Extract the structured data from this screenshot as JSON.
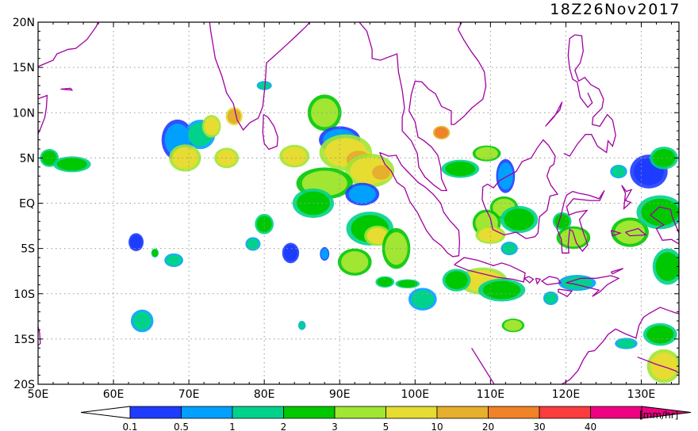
{
  "timestamp": "18Z26Nov2017",
  "map": {
    "lon_range": [
      50,
      135
    ],
    "lat_range": [
      -20,
      20
    ],
    "lat_labels": [
      "20N",
      "15N",
      "10N",
      "5N",
      "EQ",
      "5S",
      "10S",
      "15S",
      "20S"
    ],
    "lon_labels": [
      "50E",
      "60E",
      "70E",
      "80E",
      "90E",
      "100E",
      "110E",
      "120E",
      "130E"
    ],
    "grid_lines": true,
    "coastline_color": "#a000a0",
    "grid_color": "#999999"
  },
  "colorbar": {
    "unit": "[mm/hr]",
    "levels": [
      "0.1",
      "0.5",
      "1",
      "2",
      "3",
      "5",
      "10",
      "20",
      "30",
      "40"
    ],
    "colors": [
      "#1e3cff",
      "#00a0ff",
      "#00d28c",
      "#00c800",
      "#a0e632",
      "#e6dc32",
      "#e6af2d",
      "#f08228",
      "#fa3c3c",
      "#f00082"
    ]
  },
  "rain_cells": [
    {
      "lon": 68.5,
      "lat": 7.0,
      "rx": 1.7,
      "ry": 1.8,
      "c": 1
    },
    {
      "lon": 71.5,
      "lat": 7.6,
      "rx": 1.6,
      "ry": 1.3,
      "c": 2
    },
    {
      "lon": 69.5,
      "lat": 5.0,
      "rx": 1.7,
      "ry": 1.2,
      "c": 5
    },
    {
      "lon": 73.0,
      "lat": 8.5,
      "rx": 1.0,
      "ry": 1.0,
      "c": 5
    },
    {
      "lon": 75.0,
      "lat": 5.0,
      "rx": 1.3,
      "ry": 0.9,
      "c": 5
    },
    {
      "lon": 76.0,
      "lat": 9.6,
      "rx": 0.9,
      "ry": 0.8,
      "c": 6
    },
    {
      "lon": 88.0,
      "lat": 10.0,
      "rx": 1.8,
      "ry": 1.6,
      "c": 4
    },
    {
      "lon": 84.0,
      "lat": 5.2,
      "rx": 1.6,
      "ry": 1.0,
      "c": 5
    },
    {
      "lon": 90.0,
      "lat": 7.0,
      "rx": 2.2,
      "ry": 1.2,
      "c": 1
    },
    {
      "lon": 90.8,
      "lat": 5.6,
      "rx": 2.8,
      "ry": 1.6,
      "c": 5
    },
    {
      "lon": 92.5,
      "lat": 4.8,
      "rx": 1.6,
      "ry": 1.0,
      "c": 6
    },
    {
      "lon": 94.0,
      "lat": 3.6,
      "rx": 2.6,
      "ry": 1.5,
      "c": 5
    },
    {
      "lon": 95.5,
      "lat": 3.4,
      "rx": 1.2,
      "ry": 0.8,
      "c": 6
    },
    {
      "lon": 88.0,
      "lat": 2.2,
      "rx": 3.0,
      "ry": 1.4,
      "c": 4
    },
    {
      "lon": 86.5,
      "lat": 0.0,
      "rx": 2.2,
      "ry": 1.3,
      "c": 3
    },
    {
      "lon": 93.0,
      "lat": 1.0,
      "rx": 1.8,
      "ry": 1.0,
      "c": 1
    },
    {
      "lon": 94.0,
      "lat": -2.8,
      "rx": 2.5,
      "ry": 1.5,
      "c": 3
    },
    {
      "lon": 95.0,
      "lat": -3.6,
      "rx": 1.4,
      "ry": 0.9,
      "c": 5
    },
    {
      "lon": 97.5,
      "lat": -5.0,
      "rx": 1.5,
      "ry": 1.8,
      "c": 4
    },
    {
      "lon": 92.0,
      "lat": -6.5,
      "rx": 1.8,
      "ry": 1.2,
      "c": 4
    },
    {
      "lon": 51.5,
      "lat": 5.0,
      "rx": 1.0,
      "ry": 0.8,
      "c": 3
    },
    {
      "lon": 54.5,
      "lat": 4.3,
      "rx": 2.0,
      "ry": 0.7,
      "c": 3
    },
    {
      "lon": 80.0,
      "lat": -2.3,
      "rx": 1.0,
      "ry": 0.9,
      "c": 3
    },
    {
      "lon": 78.5,
      "lat": -4.5,
      "rx": 0.8,
      "ry": 0.6,
      "c": 2
    },
    {
      "lon": 83.5,
      "lat": -5.5,
      "rx": 0.9,
      "ry": 0.9,
      "c": 0
    },
    {
      "lon": 88.0,
      "lat": -5.6,
      "rx": 0.5,
      "ry": 0.6,
      "c": 1
    },
    {
      "lon": 103.5,
      "lat": 7.8,
      "rx": 0.9,
      "ry": 0.6,
      "c": 7
    },
    {
      "lon": 106.0,
      "lat": 3.8,
      "rx": 2.0,
      "ry": 0.8,
      "c": 3
    },
    {
      "lon": 109.5,
      "lat": 5.5,
      "rx": 1.5,
      "ry": 0.7,
      "c": 4
    },
    {
      "lon": 112.0,
      "lat": 3.0,
      "rx": 1.0,
      "ry": 1.5,
      "c": 1
    },
    {
      "lon": 111.8,
      "lat": -0.5,
      "rx": 1.5,
      "ry": 1.0,
      "c": 4
    },
    {
      "lon": 113.8,
      "lat": -1.8,
      "rx": 2.0,
      "ry": 1.2,
      "c": 3
    },
    {
      "lon": 109.5,
      "lat": -2.2,
      "rx": 1.5,
      "ry": 1.2,
      "c": 4
    },
    {
      "lon": 110.0,
      "lat": -3.5,
      "rx": 1.6,
      "ry": 0.8,
      "c": 5
    },
    {
      "lon": 112.5,
      "lat": -5.0,
      "rx": 0.9,
      "ry": 0.6,
      "c": 2
    },
    {
      "lon": 119.5,
      "lat": -2.0,
      "rx": 1.0,
      "ry": 0.8,
      "c": 3
    },
    {
      "lon": 121.0,
      "lat": -3.8,
      "rx": 1.8,
      "ry": 1.0,
      "c": 4
    },
    {
      "lon": 109.0,
      "lat": -8.6,
      "rx": 2.6,
      "ry": 1.2,
      "c": 5
    },
    {
      "lon": 105.5,
      "lat": -8.5,
      "rx": 1.5,
      "ry": 1.0,
      "c": 3
    },
    {
      "lon": 101.0,
      "lat": -10.6,
      "rx": 1.5,
      "ry": 1.0,
      "c": 2
    },
    {
      "lon": 111.5,
      "lat": -9.6,
      "rx": 2.5,
      "ry": 1.0,
      "c": 3
    },
    {
      "lon": 113.0,
      "lat": -13.5,
      "rx": 1.2,
      "ry": 0.6,
      "c": 4
    },
    {
      "lon": 121.5,
      "lat": -8.8,
      "rx": 2.0,
      "ry": 0.7,
      "c": 2
    },
    {
      "lon": 118.0,
      "lat": -10.5,
      "rx": 0.8,
      "ry": 0.6,
      "c": 2
    },
    {
      "lon": 128.5,
      "lat": -3.2,
      "rx": 2.0,
      "ry": 1.3,
      "c": 4
    },
    {
      "lon": 132.5,
      "lat": -1.0,
      "rx": 2.5,
      "ry": 1.5,
      "c": 3
    },
    {
      "lon": 131.0,
      "lat": 3.5,
      "rx": 2.0,
      "ry": 1.5,
      "c": 0
    },
    {
      "lon": 133.0,
      "lat": 5.0,
      "rx": 1.5,
      "ry": 1.0,
      "c": 3
    },
    {
      "lon": 133.5,
      "lat": -7.0,
      "rx": 1.6,
      "ry": 1.6,
      "c": 3
    },
    {
      "lon": 127.0,
      "lat": 3.5,
      "rx": 0.9,
      "ry": 0.6,
      "c": 2
    },
    {
      "lon": 133.0,
      "lat": -18.0,
      "rx": 1.8,
      "ry": 1.5,
      "c": 5
    },
    {
      "lon": 132.5,
      "lat": -14.5,
      "rx": 1.8,
      "ry": 1.0,
      "c": 3
    },
    {
      "lon": 128.0,
      "lat": -15.5,
      "rx": 1.2,
      "ry": 0.5,
      "c": 2
    },
    {
      "lon": 68.0,
      "lat": -6.3,
      "rx": 1.0,
      "ry": 0.6,
      "c": 2
    },
    {
      "lon": 63.0,
      "lat": -4.3,
      "rx": 0.8,
      "ry": 0.8,
      "c": 0
    },
    {
      "lon": 65.5,
      "lat": -5.5,
      "rx": 0.4,
      "ry": 0.4,
      "c": 3
    },
    {
      "lon": 63.8,
      "lat": -13.0,
      "rx": 1.2,
      "ry": 1.0,
      "c": 2
    },
    {
      "lon": 96.0,
      "lat": -8.7,
      "rx": 1.0,
      "ry": 0.5,
      "c": 3
    },
    {
      "lon": 99.0,
      "lat": -8.9,
      "rx": 1.3,
      "ry": 0.4,
      "c": 3
    },
    {
      "lon": 80.0,
      "lat": 13.0,
      "rx": 0.8,
      "ry": 0.4,
      "c": 2
    },
    {
      "lon": 85.0,
      "lat": -13.5,
      "rx": 0.4,
      "ry": 0.4,
      "c": 2
    }
  ]
}
